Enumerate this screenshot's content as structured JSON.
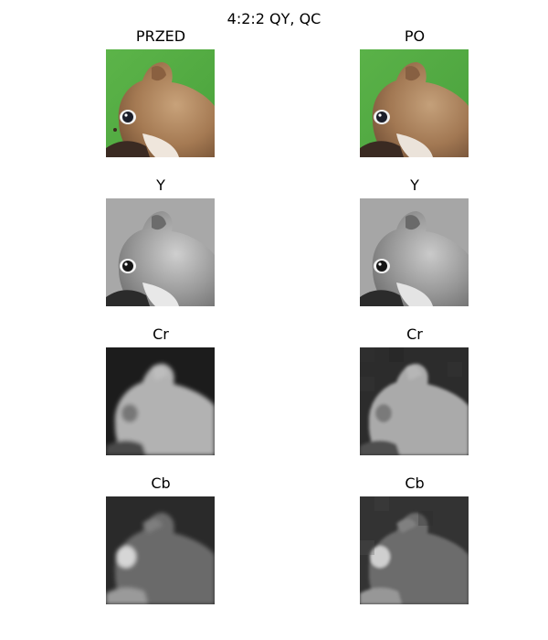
{
  "figure": {
    "title": "4:2:2 QY, QC",
    "columns": [
      {
        "id": "before",
        "panels": [
          {
            "title": "PRZED",
            "channel": "rgb"
          },
          {
            "title": "Y",
            "channel": "y"
          },
          {
            "title": "Cr",
            "channel": "cr"
          },
          {
            "title": "Cb",
            "channel": "cb"
          }
        ]
      },
      {
        "id": "after",
        "panels": [
          {
            "title": "PO",
            "channel": "rgb"
          },
          {
            "title": "Y",
            "channel": "y"
          },
          {
            "title": "Cr",
            "channel": "cr"
          },
          {
            "title": "Cb",
            "channel": "cb"
          }
        ]
      }
    ]
  }
}
